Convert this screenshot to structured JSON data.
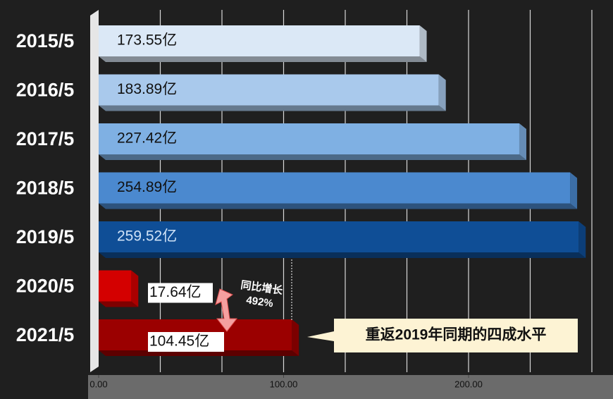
{
  "chart_data": {
    "type": "bar3d_horizontal",
    "categories": [
      "2015/5",
      "2016/5",
      "2017/5",
      "2018/5",
      "2019/5",
      "2020/5",
      "2021/5"
    ],
    "values": [
      173.55,
      183.89,
      227.42,
      254.89,
      259.52,
      17.64,
      104.45
    ],
    "value_labels": [
      "173.55亿",
      "183.89亿",
      "227.42亿",
      "254.89亿",
      "259.52亿",
      "17.64亿",
      "104.45亿"
    ],
    "colors": [
      "#dbe8f6",
      "#a9c9ec",
      "#7fb0e3",
      "#4b89cf",
      "#0f4e96",
      "#d40000",
      "#9b0000"
    ],
    "xlim": [
      0,
      266.67
    ],
    "xticks": [
      {
        "value": 0,
        "label": "0.00"
      },
      {
        "value": 100,
        "label": "100.00"
      },
      {
        "value": 200,
        "label": "200.00"
      }
    ],
    "grid_lines": [
      33.33,
      66.67,
      100,
      133.33,
      166.67,
      200,
      233.33,
      266.67
    ],
    "growth_annotation": [
      "同比增长",
      "492%"
    ],
    "callout": "重返2019年同期的四成水平"
  }
}
